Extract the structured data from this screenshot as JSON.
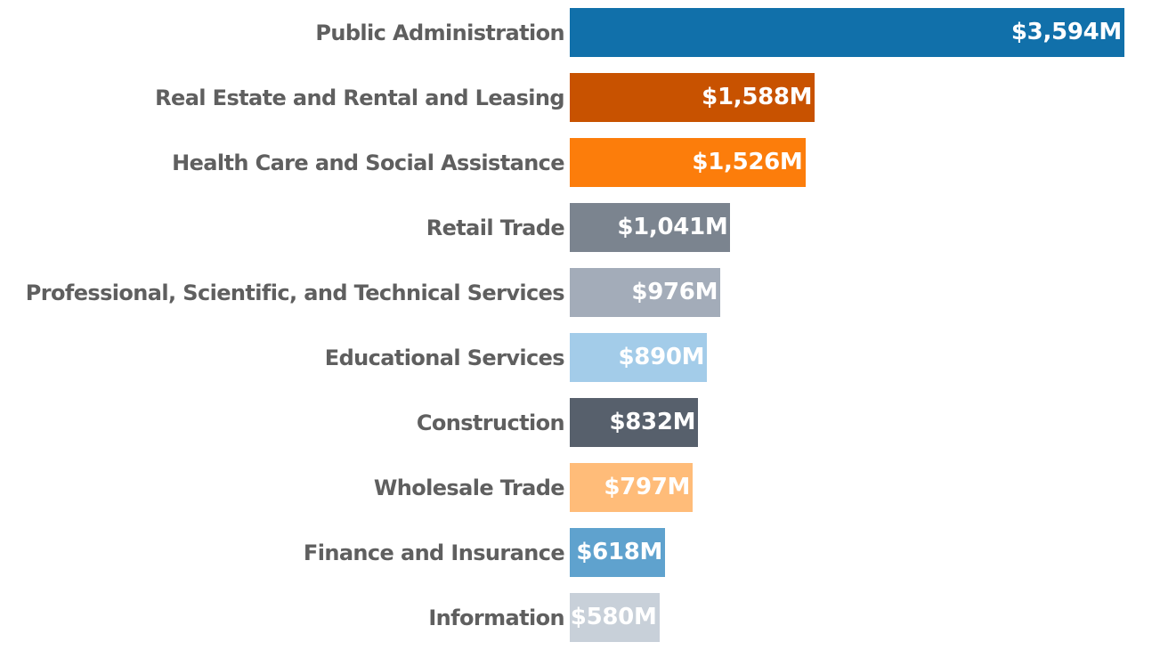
{
  "chart_data": {
    "type": "bar",
    "orientation": "horizontal",
    "categories": [
      "Public Administration",
      "Real Estate and Rental and Leasing",
      "Health Care and Social Assistance",
      "Retail Trade",
      "Professional, Scientific, and Technical Services",
      "Educational Services",
      "Construction",
      "Wholesale Trade",
      "Finance and Insurance",
      "Information"
    ],
    "values": [
      3594,
      1588,
      1526,
      1041,
      976,
      890,
      832,
      797,
      618,
      580
    ],
    "value_labels": [
      "$3,594M",
      "$1,588M",
      "$1,526M",
      "$1,041M",
      "$976M",
      "$890M",
      "$832M",
      "$797M",
      "$618M",
      "$580M"
    ],
    "colors": [
      "#1170aa",
      "#c85200",
      "#fc7d0b",
      "#7b848f",
      "#a3acb9",
      "#a3cce9",
      "#57606c",
      "#ffbc79",
      "#5fa2ce",
      "#c8d0d9"
    ],
    "xlim": [
      0,
      3594
    ],
    "grid": false,
    "legend": "none"
  }
}
